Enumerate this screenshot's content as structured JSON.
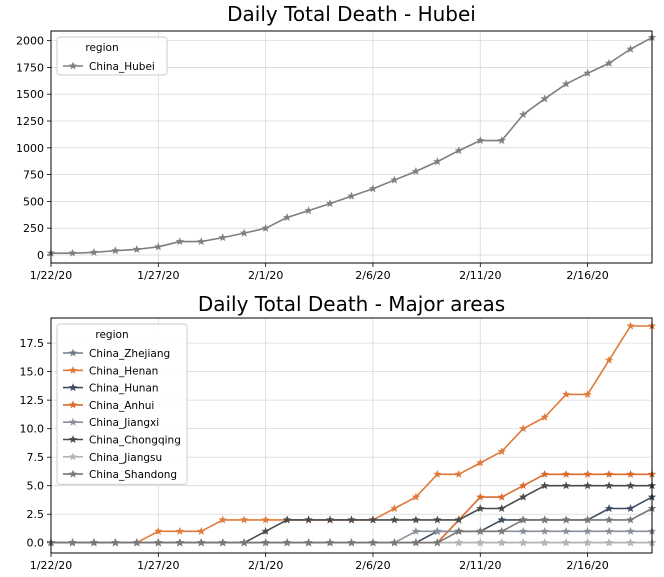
{
  "chart_data": [
    {
      "type": "line",
      "title": "Daily Total Death - Hubei",
      "xlabel": "",
      "ylabel": "",
      "x": [
        "1/22/20",
        "1/23/20",
        "1/24/20",
        "1/25/20",
        "1/26/20",
        "1/27/20",
        "1/28/20",
        "1/29/20",
        "1/30/20",
        "1/31/20",
        "2/1/20",
        "2/2/20",
        "2/3/20",
        "2/4/20",
        "2/5/20",
        "2/6/20",
        "2/7/20",
        "2/8/20",
        "2/9/20",
        "2/10/20",
        "2/11/20",
        "2/12/20",
        "2/13/20",
        "2/14/20",
        "2/15/20",
        "2/16/20",
        "2/17/20",
        "2/18/20",
        "2/19/20"
      ],
      "x_ticks": [
        "1/22/20",
        "1/27/20",
        "2/1/20",
        "2/6/20",
        "2/11/20",
        "2/16/20"
      ],
      "y_ticks": [
        0,
        250,
        500,
        750,
        1000,
        1250,
        1500,
        1750,
        2000
      ],
      "ylim": [
        -75,
        2090
      ],
      "grid": true,
      "legend": {
        "title": "region",
        "placement": "top-left"
      },
      "series": [
        {
          "name": "China_Hubei",
          "color": "#7f7f7f",
          "values": [
            17,
            17,
            24,
            40,
            52,
            76,
            125,
            125,
            162,
            204,
            249,
            350,
            414,
            479,
            549,
            618,
            699,
            780,
            871,
            974,
            1068,
            1068,
            1310,
            1457,
            1596,
            1696,
            1789,
            1921,
            2029
          ]
        }
      ]
    },
    {
      "type": "line",
      "title": "Daily Total Death - Major areas",
      "xlabel": "",
      "ylabel": "",
      "x": [
        "1/22/20",
        "1/23/20",
        "1/24/20",
        "1/25/20",
        "1/26/20",
        "1/27/20",
        "1/28/20",
        "1/29/20",
        "1/30/20",
        "1/31/20",
        "2/1/20",
        "2/2/20",
        "2/3/20",
        "2/4/20",
        "2/5/20",
        "2/6/20",
        "2/7/20",
        "2/8/20",
        "2/9/20",
        "2/10/20",
        "2/11/20",
        "2/12/20",
        "2/13/20",
        "2/14/20",
        "2/15/20",
        "2/16/20",
        "2/17/20",
        "2/18/20",
        "2/19/20"
      ],
      "x_ticks": [
        "1/22/20",
        "1/27/20",
        "2/1/20",
        "2/6/20",
        "2/11/20",
        "2/16/20"
      ],
      "y_ticks": [
        "0.0",
        "2.5",
        "5.0",
        "7.5",
        "10.0",
        "12.5",
        "15.0",
        "17.5"
      ],
      "ylim": [
        -0.9,
        19.7
      ],
      "grid": true,
      "legend": {
        "title": "region",
        "placement": "top-left"
      },
      "series": [
        {
          "name": "China_Zhejiang",
          "color": "#6e7a8c",
          "values": [
            0,
            0,
            0,
            0,
            0,
            0,
            0,
            0,
            0,
            0,
            0,
            0,
            0,
            0,
            0,
            0,
            0,
            0,
            0,
            0,
            0,
            0,
            0,
            0,
            0,
            0,
            0,
            0,
            0
          ]
        },
        {
          "name": "China_Henan",
          "color": "#e07a3a",
          "values": [
            0,
            0,
            0,
            0,
            0,
            1,
            1,
            1,
            2,
            2,
            2,
            2,
            2,
            2,
            2,
            2,
            3,
            4,
            6,
            6,
            7,
            8,
            10,
            11,
            13,
            13,
            16,
            19,
            19
          ]
        },
        {
          "name": "China_Hunan",
          "color": "#3d4c5e",
          "values": [
            0,
            0,
            0,
            0,
            0,
            0,
            0,
            0,
            0,
            0,
            0,
            0,
            0,
            0,
            0,
            0,
            0,
            0,
            1,
            1,
            1,
            2,
            2,
            2,
            2,
            2,
            3,
            3,
            4
          ]
        },
        {
          "name": "China_Anhui",
          "color": "#d96a2c",
          "values": [
            0,
            0,
            0,
            0,
            0,
            0,
            0,
            0,
            0,
            0,
            0,
            0,
            0,
            0,
            0,
            0,
            0,
            0,
            0,
            2,
            4,
            4,
            5,
            6,
            6,
            6,
            6,
            6,
            6
          ]
        },
        {
          "name": "China_Jiangxi",
          "color": "#8a8f99",
          "values": [
            0,
            0,
            0,
            0,
            0,
            0,
            0,
            0,
            0,
            0,
            0,
            0,
            0,
            0,
            0,
            0,
            0,
            1,
            1,
            1,
            1,
            1,
            1,
            1,
            1,
            1,
            1,
            1,
            1
          ]
        },
        {
          "name": "China_Chongqing",
          "color": "#4a4a4a",
          "values": [
            0,
            0,
            0,
            0,
            0,
            0,
            0,
            0,
            0,
            0,
            1,
            2,
            2,
            2,
            2,
            2,
            2,
            2,
            2,
            2,
            3,
            3,
            4,
            5,
            5,
            5,
            5,
            5,
            5
          ]
        },
        {
          "name": "China_Jiangsu",
          "color": "#b4b4b4",
          "values": [
            0,
            0,
            0,
            0,
            0,
            0,
            0,
            0,
            0,
            0,
            0,
            0,
            0,
            0,
            0,
            0,
            0,
            0,
            0,
            0,
            0,
            0,
            0,
            0,
            0,
            0,
            0,
            0,
            0
          ]
        },
        {
          "name": "China_Shandong",
          "color": "#777777",
          "values": [
            0,
            0,
            0,
            0,
            0,
            0,
            0,
            0,
            0,
            0,
            0,
            0,
            0,
            0,
            0,
            0,
            0,
            0,
            0,
            1,
            1,
            1,
            2,
            2,
            2,
            2,
            2,
            2,
            3
          ]
        }
      ]
    }
  ]
}
